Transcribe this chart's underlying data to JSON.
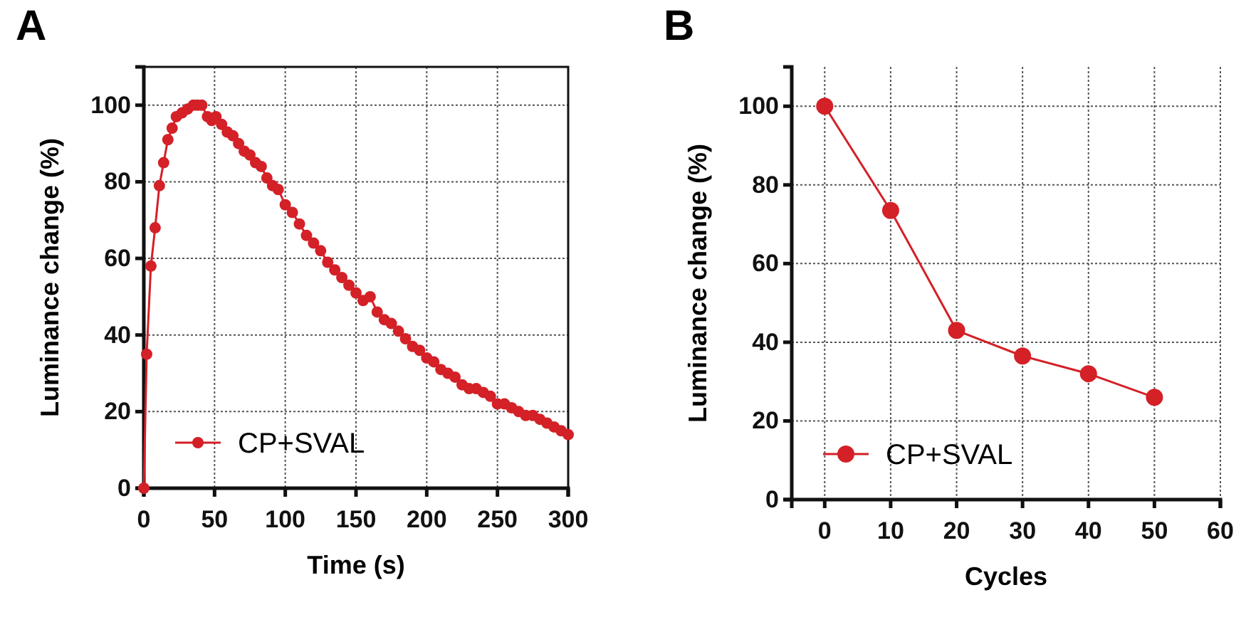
{
  "chart_data": [
    {
      "type": "line",
      "annotations": [
        "A"
      ],
      "xlabel": "Time (s)",
      "ylabel": "Luminance change (%)",
      "xlim": [
        0,
        300
      ],
      "xticks": [
        0,
        50,
        100,
        150,
        200,
        250,
        300
      ],
      "ylim": [
        0,
        110
      ],
      "yticks": [
        0,
        20,
        40,
        60,
        80,
        100
      ],
      "grid": true,
      "legend": "bottom left",
      "marker": "circle",
      "line_style": "solid",
      "series": [
        {
          "name": "CP+SVAL",
          "color": "#d42027",
          "x": [
            0,
            2,
            5,
            8,
            11,
            14,
            17,
            20,
            23,
            27,
            31,
            35,
            38,
            41,
            45,
            48,
            51,
            55,
            59,
            63,
            67,
            71,
            75,
            79,
            83,
            87,
            91,
            95,
            100,
            105,
            110,
            115,
            120,
            125,
            130,
            135,
            140,
            145,
            150,
            155,
            160,
            165,
            170,
            175,
            180,
            185,
            190,
            195,
            200,
            205,
            210,
            215,
            220,
            225,
            230,
            235,
            240,
            245,
            250,
            255,
            260,
            265,
            270,
            275,
            280,
            285,
            290,
            295,
            300
          ],
          "values": [
            0,
            35,
            58,
            68,
            79,
            85,
            91,
            94,
            97,
            98,
            99,
            100,
            100,
            100,
            97,
            96,
            97,
            95,
            93,
            92,
            90,
            88,
            87,
            85,
            84,
            81,
            79,
            78,
            74,
            72,
            69,
            66,
            64,
            62,
            59,
            57,
            55,
            53,
            51,
            49,
            50,
            46,
            44,
            43,
            41,
            39,
            37,
            36,
            34,
            33,
            31,
            30,
            29,
            27,
            26,
            26,
            25,
            24,
            22,
            22,
            21,
            20,
            19,
            19,
            18,
            17,
            16,
            15,
            14
          ]
        }
      ]
    },
    {
      "type": "line",
      "annotations": [
        "B"
      ],
      "xlabel": "Cycles",
      "ylabel": "Luminance change (%)",
      "xlim": [
        -5,
        60
      ],
      "xticks": [
        0,
        10,
        20,
        30,
        40,
        50,
        60
      ],
      "ylim": [
        0,
        110
      ],
      "yticks": [
        0,
        20,
        40,
        60,
        80,
        100
      ],
      "grid": true,
      "legend": "bottom left",
      "marker": "circle",
      "line_style": "solid",
      "series": [
        {
          "name": "CP+SVAL",
          "color": "#d42027",
          "x": [
            0,
            10,
            20,
            30,
            40,
            50
          ],
          "values": [
            100,
            73.5,
            43,
            36.5,
            32,
            26
          ]
        }
      ]
    }
  ]
}
